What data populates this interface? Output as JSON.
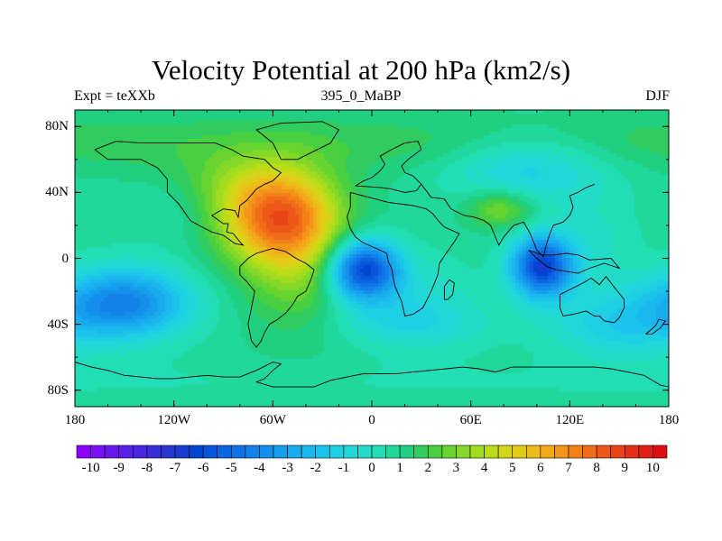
{
  "map": {
    "title": "Velocity Potential at 200 hPa (km2/s)",
    "left_string": "Expt = teXXb",
    "center_string": "395_0_MaBP",
    "right_string": "DJF",
    "variable": "velocity potential",
    "level_hpa": 200,
    "units": "km2/s",
    "lon_range": [
      -180,
      180
    ],
    "lat_range": [
      -90,
      90
    ],
    "x_ticks": [
      {
        "value": -180,
        "label": "180"
      },
      {
        "value": -120,
        "label": "120W"
      },
      {
        "value": -60,
        "label": "60W"
      },
      {
        "value": 0,
        "label": "0"
      },
      {
        "value": 60,
        "label": "60E"
      },
      {
        "value": 120,
        "label": "120E"
      },
      {
        "value": 180,
        "label": "180"
      }
    ],
    "y_ticks": [
      {
        "value": 80,
        "label": "80N"
      },
      {
        "value": 40,
        "label": "40N"
      },
      {
        "value": 0,
        "label": "0"
      },
      {
        "value": -40,
        "label": "40S"
      },
      {
        "value": -80,
        "label": "80S"
      }
    ],
    "features": [
      {
        "name": "Max over western North America / Atlantic",
        "lon": -57,
        "lat": 25,
        "value": 8.2
      },
      {
        "name": "Secondary max over central Asia",
        "lon": 78,
        "lat": 30,
        "value": 3.5
      },
      {
        "name": "Min over equatorial Africa",
        "lon": -5,
        "lat": -7,
        "value": -6.5
      },
      {
        "name": "Min over Maritime Continent",
        "lon": 103,
        "lat": -5,
        "value": -6.6
      },
      {
        "name": "Low over South Pacific",
        "lon": -150,
        "lat": -27,
        "value": -4.4
      }
    ]
  },
  "colorbar": {
    "min": -10.5,
    "max": 10.5,
    "step": 0.5,
    "colors": [
      "#8b00ff",
      "#7a10f8",
      "#6a18f0",
      "#5a20e8",
      "#4a26e0",
      "#3a2ed8",
      "#2a36d0",
      "#1a3cd0",
      "#0044d2",
      "#0856dc",
      "#0c66e2",
      "#1074e6",
      "#1282ea",
      "#1490ec",
      "#169eee",
      "#18acef",
      "#1ab8ee",
      "#1cc4eb",
      "#1ed0e4",
      "#20d8d8",
      "#22dcc8",
      "#22deb4",
      "#20d89c",
      "#20d080",
      "#30cc60",
      "#48d040",
      "#68d430",
      "#86d828",
      "#a2dc20",
      "#bcdc18",
      "#d2d818",
      "#e2cc18",
      "#ecbc18",
      "#f2aa18",
      "#f49418",
      "#f48018",
      "#f06c18",
      "#ec5818",
      "#e84418",
      "#e43018",
      "#e02018",
      "#dc1010"
    ],
    "labels": [
      "-10",
      "-9",
      "-8",
      "-7",
      "-6",
      "-5",
      "-4",
      "-3",
      "-2",
      "-1",
      "0",
      "1",
      "2",
      "3",
      "4",
      "5",
      "6",
      "7",
      "8",
      "9",
      "10"
    ]
  }
}
